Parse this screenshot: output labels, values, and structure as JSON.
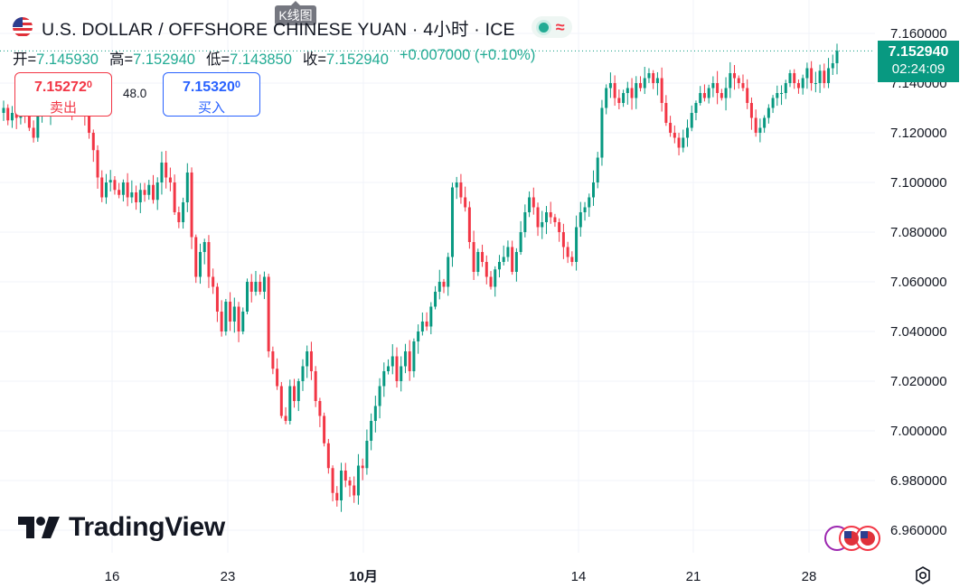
{
  "header": {
    "title": "U.S. DOLLAR / OFFSHORE CHINESE YUAN · 4小时 · ICE",
    "tooltip": "K线图"
  },
  "ohlc": {
    "open_label": "开=",
    "open": "7.145930",
    "high_label": "高=",
    "high": "7.152940",
    "low_label": "低=",
    "low": "7.143850",
    "close_label": "收=",
    "close": "7.152940",
    "change": "+0.007000 (+0.10%)"
  },
  "trade": {
    "sell_price_main": "7.15272",
    "sell_price_small": "0",
    "sell_label": "卖出",
    "spread": "48.0",
    "buy_price_main": "7.15320",
    "buy_price_small": "0",
    "buy_label": "买入"
  },
  "price_tag": {
    "price": "7.152940",
    "countdown": "02:24:09"
  },
  "logo": {
    "text": "TradingView"
  },
  "colors": {
    "up": "#089981",
    "down": "#f23645",
    "accent": "#2962ff"
  },
  "chart_data": {
    "type": "candlestick",
    "y_ticks": [
      "7.160000",
      "7.140000",
      "7.120000",
      "7.100000",
      "7.080000",
      "7.060000",
      "7.040000",
      "7.020000",
      "7.000000",
      "6.980000",
      "6.960000"
    ],
    "x_ticks": [
      "16",
      "23",
      "10月",
      "14",
      "21",
      "28"
    ],
    "ylim": [
      6.952,
      7.167
    ],
    "grid": true,
    "last_price": 7.15294,
    "close_series": [
      7.13,
      7.125,
      7.128,
      7.126,
      7.132,
      7.128,
      7.122,
      7.118,
      7.127,
      7.133,
      7.128,
      7.133,
      7.13,
      7.133,
      7.136,
      7.132,
      7.13,
      7.129,
      7.132,
      7.127,
      7.12,
      7.113,
      7.102,
      7.094,
      7.1,
      7.101,
      7.097,
      7.095,
      7.1,
      7.094,
      7.096,
      7.092,
      7.097,
      7.095,
      7.099,
      7.093,
      7.1,
      7.108,
      7.102,
      7.1,
      7.088,
      7.084,
      7.092,
      7.104,
      7.078,
      7.062,
      7.072,
      7.076,
      7.062,
      7.058,
      7.048,
      7.04,
      7.052,
      7.044,
      7.05,
      7.04,
      7.048,
      7.06,
      7.056,
      7.06,
      7.056,
      7.062,
      7.032,
      7.025,
      7.018,
      7.006,
      7.004,
      7.018,
      7.012,
      7.02,
      7.026,
      7.032,
      7.024,
      7.012,
      7.006,
      6.995,
      6.985,
      6.975,
      6.972,
      6.984,
      6.98,
      6.978,
      6.974,
      6.986,
      6.985,
      6.996,
      7.004,
      7.01,
      7.018,
      7.024,
      7.026,
      7.03,
      7.02,
      7.026,
      7.032,
      7.024,
      7.036,
      7.04,
      7.044,
      7.042,
      7.05,
      7.056,
      7.06,
      7.058,
      7.07,
      7.098,
      7.1,
      7.094,
      7.09,
      7.076,
      7.064,
      7.072,
      7.068,
      7.062,
      7.058,
      7.065,
      7.068,
      7.07,
      7.074,
      7.064,
      7.072,
      7.08,
      7.088,
      7.094,
      7.09,
      7.082,
      7.084,
      7.088,
      7.086,
      7.084,
      7.08,
      7.074,
      7.07,
      7.068,
      7.082,
      7.088,
      7.09,
      7.094,
      7.1,
      7.11,
      7.13,
      7.138,
      7.14,
      7.134,
      7.132,
      7.136,
      7.138,
      7.134,
      7.14,
      7.138,
      7.142,
      7.144,
      7.14,
      7.142,
      7.132,
      7.124,
      7.12,
      7.118,
      7.114,
      7.118,
      7.122,
      7.128,
      7.132,
      7.136,
      7.134,
      7.138,
      7.14,
      7.136,
      7.134,
      7.138,
      7.144,
      7.142,
      7.14,
      7.138,
      7.132,
      7.126,
      7.12,
      7.122,
      7.126,
      7.13,
      7.134,
      7.136,
      7.136,
      7.14,
      7.144,
      7.14,
      7.138,
      7.142,
      7.146,
      7.14,
      7.14,
      7.145,
      7.14,
      7.146,
      7.148,
      7.153
    ]
  }
}
